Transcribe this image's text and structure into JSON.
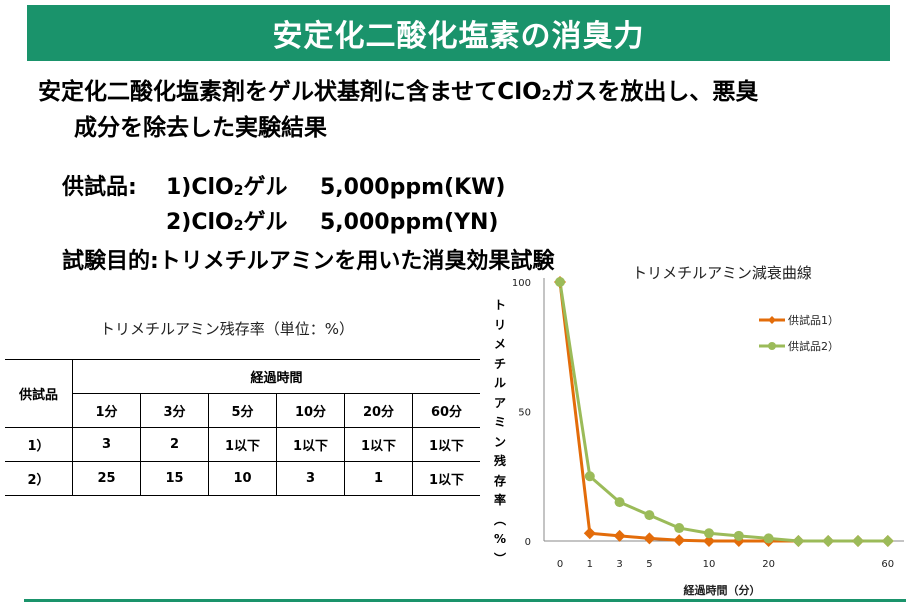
{
  "header": {
    "title": "安定化二酸化塩素の消臭力",
    "bg_color": "#1a936b"
  },
  "intro": {
    "line1_pre": "安定化二酸化塩素剤をゲル状基剤に含ませてClO",
    "line1_sub": "2",
    "line1_post": "ガスを放出し、悪臭",
    "line2": "成分を除去した実験結果"
  },
  "samples": {
    "label": "供試品:",
    "items": [
      {
        "prefix": "1)ClO",
        "sub": "2",
        "suffix": "ゲル",
        "conc": "5,000ppm(KW)"
      },
      {
        "prefix": "2)ClO",
        "sub": "2",
        "suffix": "ゲル",
        "conc": "5,000ppm(YN)"
      }
    ]
  },
  "purpose": "試験目的:トリメチルアミンを用いた消臭効果試験",
  "table": {
    "caption": "トリメチルアミン残存率（単位：%）",
    "row_header": "供試品",
    "group_header": "経過時間",
    "columns": [
      "1分",
      "3分",
      "5分",
      "10分",
      "20分",
      "60分"
    ],
    "rows": [
      {
        "label": "1）",
        "values": [
          "3",
          "2",
          "1以下",
          "1以下",
          "1以下",
          "1以下"
        ]
      },
      {
        "label": "2）",
        "values": [
          "25",
          "15",
          "10",
          "3",
          "1",
          "1以下"
        ]
      }
    ]
  },
  "chart_data": {
    "type": "line",
    "title": "トリメチルアミン減衰曲線",
    "xlabel": "経過時間（分）",
    "ylabel": "トリメチルアミン残存率（%）",
    "ylabel_chars": [
      "ト",
      "リ",
      "メ",
      "チ",
      "ル",
      "ア",
      "ミ",
      "ン",
      "残",
      "存",
      "率",
      "︵",
      "%",
      "︶"
    ],
    "y_ticks": [
      "100",
      "50",
      "0"
    ],
    "ylim": [
      0,
      100
    ],
    "x_points": 12,
    "x_tick_labels": [
      {
        "index": 0,
        "label": "0"
      },
      {
        "index": 1,
        "label": "1"
      },
      {
        "index": 2,
        "label": "3"
      },
      {
        "index": 3,
        "label": "5"
      },
      {
        "index": 5,
        "label": "10"
      },
      {
        "index": 7,
        "label": "20"
      },
      {
        "index": 11,
        "label": "60"
      }
    ],
    "legend_position": "right",
    "series": [
      {
        "name": "供試品1）",
        "color": "#e36c0a",
        "marker": "diamond",
        "values": [
          100,
          3,
          2,
          1,
          0.3,
          0,
          0,
          0,
          0,
          0,
          0,
          0
        ]
      },
      {
        "name": "供試品2）",
        "color": "#9bbb59",
        "marker": "circle",
        "values": [
          100,
          25,
          15,
          10,
          5,
          3,
          2,
          1,
          0,
          0,
          0,
          0
        ]
      }
    ]
  },
  "footer": {
    "rule_color": "#1a936b"
  }
}
